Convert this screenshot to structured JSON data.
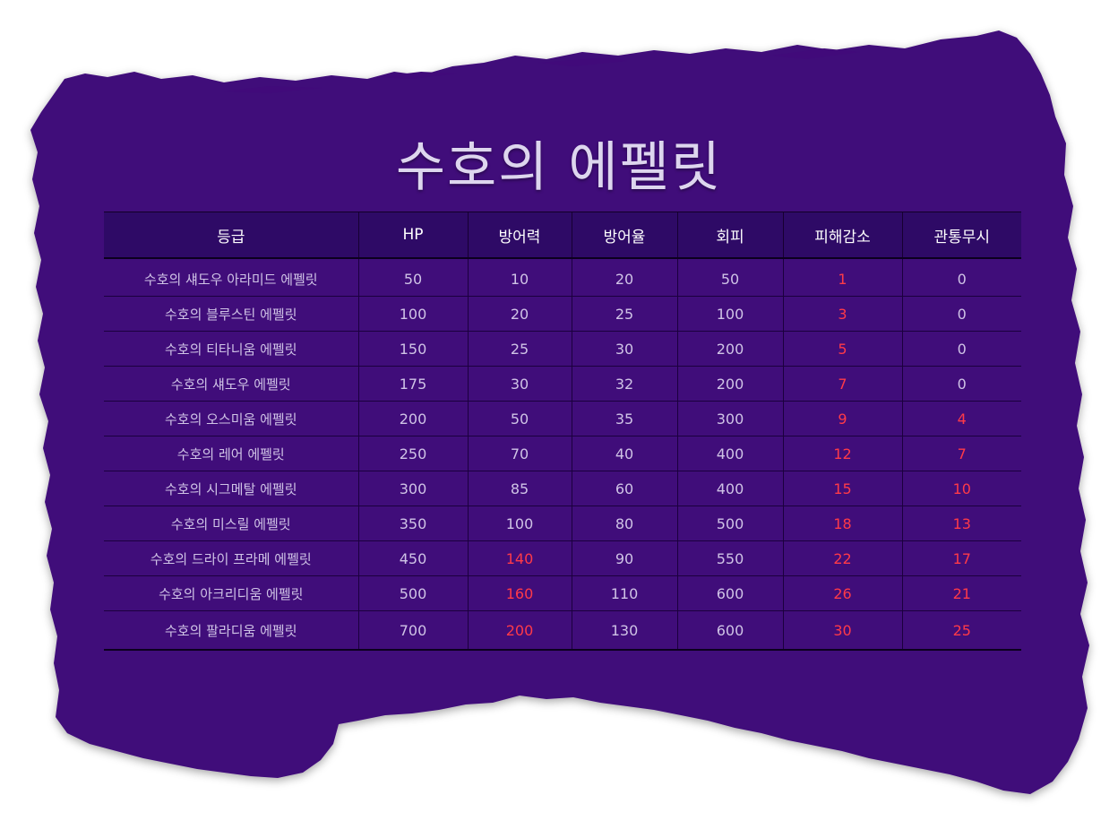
{
  "title": "수호의 에펠릿",
  "colors": {
    "panel": "#410a7a",
    "header_bg": "#2e0a66",
    "text": "#cfc3e6",
    "highlight": "#ff3a48"
  },
  "table": {
    "headers": [
      "등급",
      "HP",
      "방어력",
      "방어율",
      "회피",
      "피해감소",
      "관통무시"
    ],
    "rows": [
      {
        "name": "수호의 섀도우 아라미드 에펠릿",
        "hp": "50",
        "defense": "10",
        "defense_rate": "20",
        "evasion": "50",
        "damage_reduction": "1",
        "penetration_ignore": "0"
      },
      {
        "name": "수호의 블루스틴 에펠릿",
        "hp": "100",
        "defense": "20",
        "defense_rate": "25",
        "evasion": "100",
        "damage_reduction": "3",
        "penetration_ignore": "0"
      },
      {
        "name": "수호의 티타니움 에펠릿",
        "hp": "150",
        "defense": "25",
        "defense_rate": "30",
        "evasion": "200",
        "damage_reduction": "5",
        "penetration_ignore": "0"
      },
      {
        "name": "수호의 섀도우 에펠릿",
        "hp": "175",
        "defense": "30",
        "defense_rate": "32",
        "evasion": "200",
        "damage_reduction": "7",
        "penetration_ignore": "0"
      },
      {
        "name": "수호의 오스미움 에펠릿",
        "hp": "200",
        "defense": "50",
        "defense_rate": "35",
        "evasion": "300",
        "damage_reduction": "9",
        "penetration_ignore": "4"
      },
      {
        "name": "수호의 레어 에펠릿",
        "hp": "250",
        "defense": "70",
        "defense_rate": "40",
        "evasion": "400",
        "damage_reduction": "12",
        "penetration_ignore": "7"
      },
      {
        "name": "수호의 시그메탈 에펠릿",
        "hp": "300",
        "defense": "85",
        "defense_rate": "60",
        "evasion": "400",
        "damage_reduction": "15",
        "penetration_ignore": "10"
      },
      {
        "name": "수호의 미스릴 에펠릿",
        "hp": "350",
        "defense": "100",
        "defense_rate": "80",
        "evasion": "500",
        "damage_reduction": "18",
        "penetration_ignore": "13"
      },
      {
        "name": "수호의 드라이 프라메 에펠릿",
        "hp": "450",
        "defense": "140",
        "defense_rate": "90",
        "evasion": "550",
        "damage_reduction": "22",
        "penetration_ignore": "17"
      },
      {
        "name": "수호의 아크리디움 에펠릿",
        "hp": "500",
        "defense": "160",
        "defense_rate": "110",
        "evasion": "600",
        "damage_reduction": "26",
        "penetration_ignore": "21"
      },
      {
        "name": "수호의 팔라디움 에펠릿",
        "hp": "700",
        "defense": "200",
        "defense_rate": "130",
        "evasion": "600",
        "damage_reduction": "30",
        "penetration_ignore": "25"
      }
    ]
  }
}
